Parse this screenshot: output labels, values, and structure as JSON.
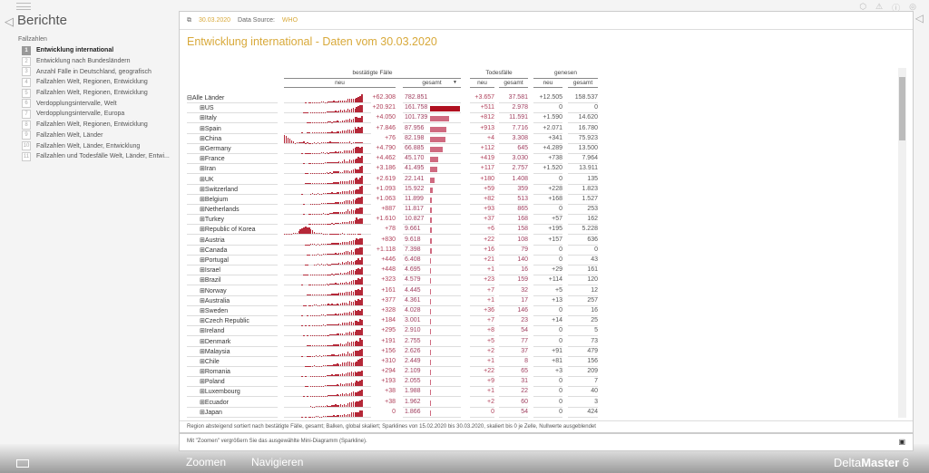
{
  "sidebar": {
    "title": "Berichte",
    "section": "Fallzahlen",
    "items": [
      {
        "n": "1",
        "label": "Entwicklung international",
        "active": true
      },
      {
        "n": "2",
        "label": "Entwicklung nach Bundesländern"
      },
      {
        "n": "3",
        "label": "Anzahl Fälle in Deutschland, geografisch"
      },
      {
        "n": "4",
        "label": "Fallzahlen Welt, Regionen, Entwicklung"
      },
      {
        "n": "5",
        "label": "Fallzahlen Welt, Regionen, Entwicklung"
      },
      {
        "n": "6",
        "label": "Verdopplungsintervalle, Welt"
      },
      {
        "n": "7",
        "label": "Verdopplungsintervalle, Europa"
      },
      {
        "n": "8",
        "label": "Fallzahlen Welt, Regionen, Entwicklung"
      },
      {
        "n": "9",
        "label": "Fallzahlen Welt, Länder"
      },
      {
        "n": "10",
        "label": "Fallzahlen Welt, Länder, Entwicklung"
      },
      {
        "n": "11",
        "label": "Fallzahlen und Todesfälle Welt, Länder, Entwi..."
      }
    ]
  },
  "header": {
    "date": "30.03.2020",
    "source_label": "Data Source:",
    "source": "WHO"
  },
  "title": "Entwicklung international - Daten vom 30.03.2020",
  "columns": {
    "confirmed": "bestätigte Fälle",
    "deaths": "Todesfälle",
    "recovered": "genesen",
    "neu": "neu",
    "gesamt": "gesamt",
    "sort": "▼"
  },
  "rows": [
    [
      "Alle Länder",
      "+62.308",
      "782.851",
      "+3.657",
      "37.581",
      "+12.505",
      "158.537"
    ],
    [
      "US",
      "+20.921",
      "161.758",
      "+511",
      "2.978",
      "0",
      "0"
    ],
    [
      "Italy",
      "+4.050",
      "101.739",
      "+812",
      "11.591",
      "+1.590",
      "14.620"
    ],
    [
      "Spain",
      "+7.846",
      "87.956",
      "+913",
      "7.716",
      "+2.071",
      "16.780"
    ],
    [
      "China",
      "+76",
      "82.198",
      "+4",
      "3.308",
      "+341",
      "75.923"
    ],
    [
      "Germany",
      "+4.790",
      "66.885",
      "+112",
      "645",
      "+4.289",
      "13.500"
    ],
    [
      "France",
      "+4.462",
      "45.170",
      "+419",
      "3.030",
      "+738",
      "7.964"
    ],
    [
      "Iran",
      "+3.186",
      "41.495",
      "+117",
      "2.757",
      "+1.520",
      "13.911"
    ],
    [
      "UK",
      "+2.619",
      "22.141",
      "+180",
      "1.408",
      "0",
      "135"
    ],
    [
      "Switzerland",
      "+1.093",
      "15.922",
      "+59",
      "359",
      "+228",
      "1.823"
    ],
    [
      "Belgium",
      "+1.063",
      "11.899",
      "+82",
      "513",
      "+168",
      "1.527"
    ],
    [
      "Netherlands",
      "+887",
      "11.817",
      "+93",
      "865",
      "0",
      "253"
    ],
    [
      "Turkey",
      "+1.610",
      "10.827",
      "+37",
      "168",
      "+57",
      "162"
    ],
    [
      "Republic of Korea",
      "+78",
      "9.661",
      "+6",
      "158",
      "+195",
      "5.228"
    ],
    [
      "Austria",
      "+830",
      "9.618",
      "+22",
      "108",
      "+157",
      "636"
    ],
    [
      "Canada",
      "+1.118",
      "7.398",
      "+16",
      "79",
      "0",
      "0"
    ],
    [
      "Portugal",
      "+446",
      "6.408",
      "+21",
      "140",
      "0",
      "43"
    ],
    [
      "Israel",
      "+448",
      "4.695",
      "+1",
      "16",
      "+29",
      "161"
    ],
    [
      "Brazil",
      "+323",
      "4.579",
      "+23",
      "159",
      "+114",
      "120"
    ],
    [
      "Norway",
      "+161",
      "4.445",
      "+7",
      "32",
      "+5",
      "12"
    ],
    [
      "Australia",
      "+377",
      "4.361",
      "+1",
      "17",
      "+13",
      "257"
    ],
    [
      "Sweden",
      "+328",
      "4.028",
      "+36",
      "146",
      "0",
      "16"
    ],
    [
      "Czech Republic",
      "+184",
      "3.001",
      "+7",
      "23",
      "+14",
      "25"
    ],
    [
      "Ireland",
      "+295",
      "2.910",
      "+8",
      "54",
      "0",
      "5"
    ],
    [
      "Denmark",
      "+191",
      "2.755",
      "+5",
      "77",
      "0",
      "73"
    ],
    [
      "Malaysia",
      "+156",
      "2.626",
      "+2",
      "37",
      "+91",
      "479"
    ],
    [
      "Chile",
      "+310",
      "2.449",
      "+1",
      "8",
      "+81",
      "156"
    ],
    [
      "Romania",
      "+294",
      "2.109",
      "+22",
      "65",
      "+3",
      "209"
    ],
    [
      "Poland",
      "+193",
      "2.055",
      "+9",
      "31",
      "0",
      "7"
    ],
    [
      "Luxembourg",
      "+38",
      "1.988",
      "+1",
      "22",
      "0",
      "40"
    ],
    [
      "Ecuador",
      "+38",
      "1.962",
      "+2",
      "60",
      "0",
      "3"
    ],
    [
      "Japan",
      "0",
      "1.866",
      "0",
      "54",
      "0",
      "424"
    ]
  ],
  "footnote": "Region absteigend sortiert nach bestätigte Fälle, gesamt; Balken, global skaliert; Sparklines von 15.02.2020 bis 30.03.2020, skaliert bis 0 je Zelle, Nullwerte ausgeblendet",
  "hint": "Mit \"Zoomen\" vergrößern Sie das ausgewählte Mini-Diagramm (Sparkline).",
  "bottom": {
    "zoom": "Zoomen",
    "navigate": "Navigieren",
    "brand_a": "Delta",
    "brand_b": "Master",
    "version": "6"
  },
  "colors": {
    "accent": "#d8a93a",
    "bar": "#b52838"
  }
}
